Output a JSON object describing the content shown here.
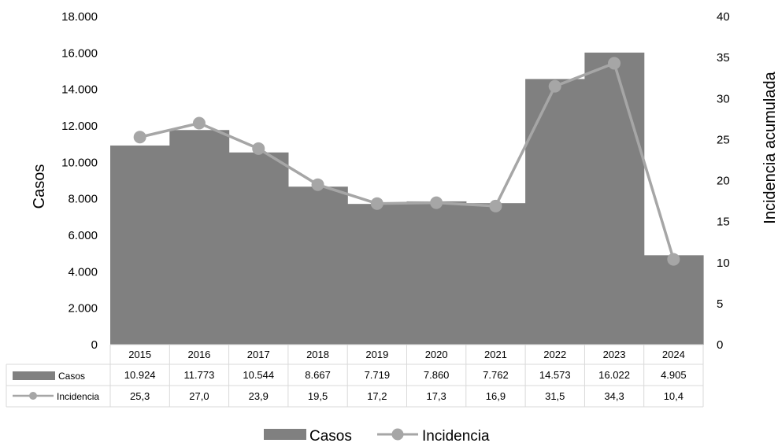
{
  "chart_data": {
    "type": "bar+line",
    "categories": [
      "2015",
      "2016",
      "2017",
      "2018",
      "2019",
      "2020",
      "2021",
      "2022",
      "2023",
      "2024"
    ],
    "series": [
      {
        "name": "Casos",
        "kind": "bar",
        "axis": "left",
        "values": [
          10924,
          11773,
          10544,
          8667,
          7719,
          7860,
          7762,
          14573,
          16022,
          4905
        ],
        "labels": [
          "10.924",
          "11.773",
          "10.544",
          "8.667",
          "7.719",
          "7.860",
          "7.762",
          "14.573",
          "16.022",
          "4.905"
        ],
        "color": "#808080"
      },
      {
        "name": "Incidencia",
        "kind": "line",
        "axis": "right",
        "values": [
          25.3,
          27.0,
          23.9,
          19.5,
          17.2,
          17.3,
          16.9,
          31.5,
          34.3,
          10.4
        ],
        "labels": [
          "25,3",
          "27,0",
          "23,9",
          "19,5",
          "17,2",
          "17,3",
          "16,9",
          "31,5",
          "34,3",
          "10,4"
        ],
        "color": "#a6a6a6"
      }
    ],
    "ylabel_left": "Casos",
    "ylabel_right": "Incidencia acumulada",
    "ylim_left": [
      0,
      18000
    ],
    "yticks_left": [
      "0",
      "2.000",
      "4.000",
      "6.000",
      "8.000",
      "10.000",
      "12.000",
      "14.000",
      "16.000",
      "18.000"
    ],
    "ylim_right": [
      0,
      40
    ],
    "yticks_right": [
      "0",
      "5",
      "10",
      "15",
      "20",
      "25",
      "30",
      "35",
      "40"
    ],
    "grid": false,
    "legend_position": "bottom",
    "data_table": true
  }
}
